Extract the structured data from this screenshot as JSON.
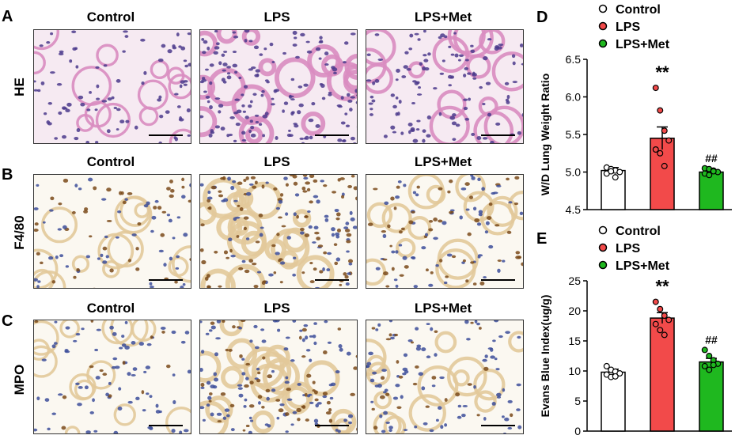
{
  "panels": {
    "A": {
      "letter": "A",
      "row_label": "HE"
    },
    "B": {
      "letter": "B",
      "row_label": "F4/80"
    },
    "C": {
      "letter": "C",
      "row_label": "MPO"
    },
    "D": {
      "letter": "D"
    },
    "E": {
      "letter": "E"
    }
  },
  "columns": [
    "Control",
    "LPS",
    "LPS+Met"
  ],
  "colors": {
    "control": "#ffffff",
    "lps": "#f24a4a",
    "lps_met": "#1fb81f",
    "he_bg": "#f6eaf2",
    "he_tissue": "#d98cc0",
    "he_nuclei": "#4b3a8c",
    "ihc_bg": "#fbf8f1",
    "ihc_tissue": "#e2c99a",
    "ihc_brown": "#7a4a1a",
    "ihc_blue": "#3c4e9a"
  },
  "chart_data": [
    {
      "type": "bar",
      "panel": "D",
      "ylabel": "W/D Lung Weight Ratio",
      "categories": [
        "Control",
        "LPS",
        "LPS+Met"
      ],
      "values": [
        5.02,
        5.45,
        5.0
      ],
      "errors": [
        0.04,
        0.15,
        0.03
      ],
      "points": [
        [
          5.06,
          5.04,
          5.02,
          5.0,
          4.98,
          5.01,
          4.93
        ],
        [
          6.12,
          5.82,
          5.55,
          5.42,
          5.3,
          5.25,
          5.08
        ],
        [
          5.05,
          5.04,
          5.02,
          5.0,
          4.98,
          4.96,
          5.01
        ]
      ],
      "ylim": [
        4.5,
        6.5
      ],
      "yticks": [
        "4.5",
        "5.0",
        "5.5",
        "6.0",
        "6.5"
      ],
      "annotations": [
        "",
        "**",
        "##"
      ],
      "legend": [
        "Control",
        "LPS",
        "LPS+Met"
      ],
      "legend_position": "top"
    },
    {
      "type": "bar",
      "panel": "E",
      "ylabel": "Evans Blue Index(ug/g)",
      "categories": [
        "Control",
        "LPS",
        "LPS+Met"
      ],
      "values": [
        9.8,
        18.8,
        11.5
      ],
      "errors": [
        0.5,
        0.9,
        0.6
      ],
      "points": [
        [
          10.8,
          10.2,
          9.9,
          9.6,
          9.4,
          9.0,
          9.1
        ],
        [
          21.5,
          20.3,
          19.2,
          18.5,
          17.8,
          16.8,
          16.0
        ],
        [
          13.5,
          12.5,
          11.8,
          11.2,
          10.8,
          10.2,
          11.0
        ]
      ],
      "ylim": [
        0,
        25
      ],
      "yticks": [
        "0",
        "5",
        "10",
        "15",
        "20",
        "25"
      ],
      "annotations": [
        "",
        "**",
        "##"
      ],
      "legend": [
        "Control",
        "LPS",
        "LPS+Met"
      ],
      "legend_position": "top"
    }
  ]
}
